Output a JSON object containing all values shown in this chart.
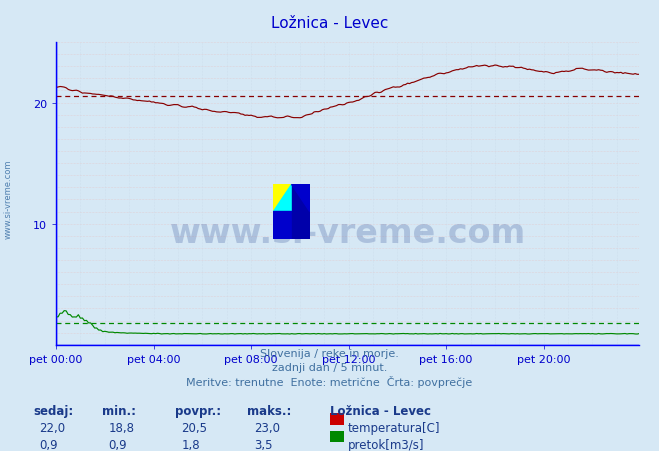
{
  "title": "Ložnica - Levec",
  "bg_color": "#d6e8f5",
  "plot_bg_color": "#d6e8f5",
  "grid_color_h": "#e8c0c0",
  "grid_color_v": "#c8d8e8",
  "title_color": "#0000cc",
  "tick_color": "#0000cc",
  "ylim": [
    0,
    25
  ],
  "yticks": [
    10,
    20
  ],
  "n_points": 288,
  "temp_color": "#880000",
  "flow_color": "#008800",
  "avg_temp": 20.5,
  "avg_flow": 1.8,
  "xtick_labels": [
    "pet 00:00",
    "pet 04:00",
    "pet 08:00",
    "pet 12:00",
    "pet 16:00",
    "pet 20:00"
  ],
  "xtick_positions": [
    0,
    48,
    96,
    144,
    192,
    240
  ],
  "footer_lines": [
    "Slovenija / reke in morje.",
    "zadnji dan / 5 minut.",
    "Meritve: trenutne  Enote: metrične  Črta: povprečje"
  ],
  "legend_title": "Ložnica - Levec",
  "legend_items": [
    {
      "label": "temperatura[C]",
      "color": "#cc0000"
    },
    {
      "label": "pretok[m3/s]",
      "color": "#008800"
    }
  ],
  "table_headers": [
    "sedaj:",
    "min.:",
    "povpr.:",
    "maks.:"
  ],
  "table_rows": [
    [
      "22,0",
      "18,8",
      "20,5",
      "23,0"
    ],
    [
      "0,9",
      "0,9",
      "1,8",
      "3,5"
    ]
  ],
  "watermark": "www.si-vreme.com",
  "watermark_color": "#1a3a8a",
  "sidebar_text": "www.si-vreme.com",
  "sidebar_color": "#5080b0"
}
